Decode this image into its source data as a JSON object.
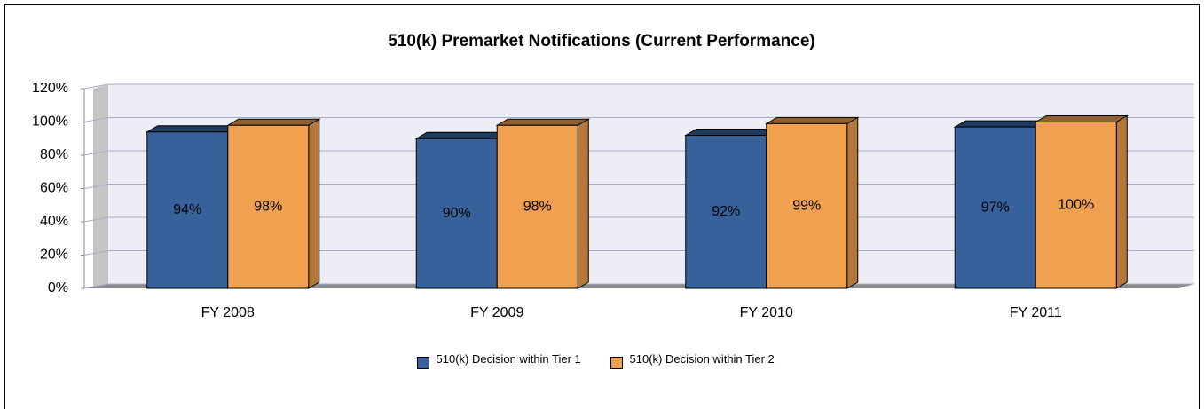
{
  "chart_data": {
    "type": "bar3d",
    "title": "510(k) Premarket Notifications (Current Performance)",
    "categories": [
      "FY 2008",
      "FY 2009",
      "FY 2010",
      "FY 2011"
    ],
    "series": [
      {
        "name": "510(k) Decision within Tier 1",
        "color": "#36619a",
        "values": [
          94,
          90,
          92,
          97
        ],
        "value_labels": [
          "94%",
          "90%",
          "92%",
          "97%"
        ]
      },
      {
        "name": "510(k) Decision within Tier 2",
        "color": "#f0a04f",
        "values": [
          98,
          98,
          99,
          100
        ],
        "value_labels": [
          "98%",
          "98%",
          "99%",
          "100%"
        ]
      }
    ],
    "ylim": [
      0,
      120
    ],
    "yticks": [
      {
        "value": 0,
        "label": "0%"
      },
      {
        "value": 20,
        "label": "20%"
      },
      {
        "value": 40,
        "label": "40%"
      },
      {
        "value": 60,
        "label": "60%"
      },
      {
        "value": 80,
        "label": "80%"
      },
      {
        "value": 100,
        "label": "100%"
      },
      {
        "value": 120,
        "label": "120%"
      }
    ],
    "grid": true,
    "legend": "bottom"
  }
}
